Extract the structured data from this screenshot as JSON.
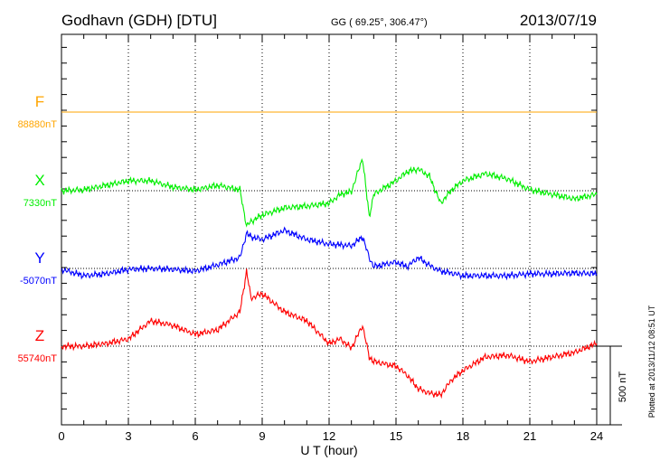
{
  "header": {
    "station": "Godhavn (GDH)  [DTU]",
    "coords": "GG ( 69.25°, 306.47°)",
    "date": "2013/07/19"
  },
  "footer": {
    "plotted": "Plotted at 2013/11/12 08:51  UT",
    "scale_label": "500 nT"
  },
  "chart_data": {
    "type": "line",
    "xlabel": "U T (hour)",
    "xlim": [
      0,
      24
    ],
    "x_ticks": [
      "0",
      "3",
      "6",
      "9",
      "12",
      "15",
      "18",
      "21",
      "24"
    ],
    "scale_bar_nT": 500,
    "grid": true,
    "x": [
      0,
      1,
      2,
      3,
      4,
      5,
      6,
      7,
      8,
      8.3,
      8.5,
      9,
      10,
      11,
      12,
      12.5,
      13,
      13.5,
      13.8,
      14,
      15,
      15.5,
      16,
      16.5,
      17,
      17.5,
      18,
      19,
      20,
      21,
      22,
      23,
      24
    ],
    "series": [
      {
        "name": "F",
        "baseline_label": "88880nT",
        "color": "#ffa500",
        "values": [
          0,
          0,
          0,
          0,
          0,
          0,
          0,
          0,
          0,
          0,
          0,
          0,
          0,
          0,
          0,
          0,
          0,
          0,
          0,
          0,
          0,
          0,
          0,
          0,
          0,
          0,
          0,
          0,
          0,
          0,
          0,
          0,
          0
        ]
      },
      {
        "name": "X",
        "baseline_label": "7330nT",
        "color": "#00ee00",
        "values": [
          0,
          6,
          34,
          63,
          63,
          23,
          6,
          34,
          6,
          -224,
          -196,
          -155,
          -109,
          -98,
          -80,
          -23,
          -6,
          207,
          -167,
          -23,
          63,
          121,
          138,
          92,
          -80,
          6,
          63,
          109,
          75,
          6,
          -23,
          -52,
          -23
        ]
      },
      {
        "name": "Y",
        "baseline_label": "-5070nT",
        "color": "#0000ff",
        "values": [
          -6,
          -46,
          -34,
          -6,
          0,
          -6,
          -17,
          23,
          69,
          224,
          201,
          184,
          242,
          184,
          155,
          150,
          144,
          201,
          69,
          12,
          40,
          12,
          69,
          20,
          -17,
          -30,
          -46,
          -46,
          -46,
          -34,
          -34,
          -29,
          -34
        ]
      },
      {
        "name": "Z",
        "baseline_label": "55740nT",
        "color": "#ff0000",
        "values": [
          0,
          0,
          17,
          46,
          161,
          132,
          75,
          104,
          218,
          477,
          305,
          334,
          218,
          161,
          17,
          46,
          -12,
          132,
          -69,
          -98,
          -127,
          -184,
          -270,
          -299,
          -310,
          -213,
          -155,
          -69,
          -58,
          -98,
          -69,
          -40,
          17
        ]
      }
    ]
  }
}
